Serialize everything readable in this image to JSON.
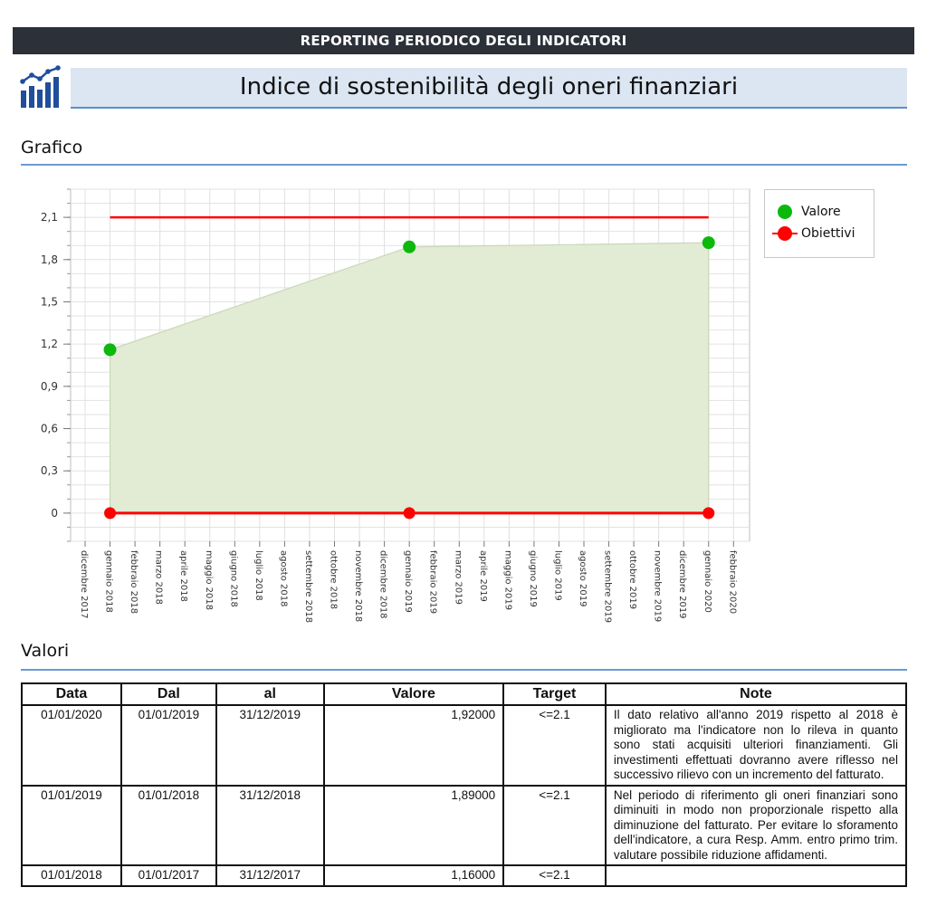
{
  "header": {
    "banner": "REPORTING PERIODICO DEGLI INDICATORI",
    "title": "Indice di sostenibilità degli oneri finanziari"
  },
  "sections": {
    "chart": "Grafico",
    "values": "Valori"
  },
  "colors": {
    "banner_bg": "#2b3039",
    "title_bg": "#dce6f2",
    "accent": "#5b8fc9",
    "valore": "#0cb80c",
    "obiettivi": "#ff0000",
    "area": "#e2ebd3"
  },
  "icon": "bar-chart-trend-icon",
  "chart_data": {
    "type": "area",
    "ylim": [
      -0.2,
      2.3
    ],
    "yticks": [
      "0",
      "0,3",
      "0,6",
      "0,9",
      "1,2",
      "1,5",
      "1,8",
      "2,1"
    ],
    "ytick_values": [
      0,
      0.3,
      0.6,
      0.9,
      1.2,
      1.5,
      1.8,
      2.1
    ],
    "x_categories": [
      "dicembre 2017",
      "gennaio 2018",
      "febbraio 2018",
      "marzo 2018",
      "aprile 2018",
      "maggio 2018",
      "giugno 2018",
      "luglio 2018",
      "agosto 2018",
      "settembre 2018",
      "ottobre 2018",
      "novembre 2018",
      "dicembre 2018",
      "gennaio 2019",
      "febbraio 2019",
      "marzo 2019",
      "aprile 2019",
      "maggio 2019",
      "giugno 2019",
      "luglio 2019",
      "agosto 2019",
      "settembre 2019",
      "ottobre 2019",
      "novembre 2019",
      "dicembre 2019",
      "gennaio 2020",
      "febbraio 2020"
    ],
    "series": [
      {
        "name": "Valore",
        "x": [
          "gennaio 2018",
          "gennaio 2019",
          "gennaio 2020"
        ],
        "values": [
          1.16,
          1.89,
          1.92
        ]
      },
      {
        "name": "Obiettivi",
        "x": [
          "gennaio 2018",
          "gennaio 2019",
          "gennaio 2020"
        ],
        "values": [
          0,
          0,
          0
        ],
        "upper": [
          2.1,
          2.1,
          2.1
        ]
      }
    ],
    "legend_position": "right",
    "grid": true
  },
  "table": {
    "headers": [
      "Data",
      "Dal",
      "al",
      "Valore",
      "Target",
      "Note"
    ],
    "rows": [
      [
        "01/01/2020",
        "01/01/2019",
        "31/12/2019",
        "1,92000",
        "<=2.1",
        "Il dato relativo all'anno 2019 rispetto al 2018 è migliorato ma l'indicatore non lo rileva in quanto sono stati acquisiti ulteriori finanziamenti. Gli investimenti effettuati dovranno avere riflesso nel successivo rilievo con un incremento del fatturato."
      ],
      [
        "01/01/2019",
        "01/01/2018",
        "31/12/2018",
        "1,89000",
        "<=2.1",
        "Nel periodo di riferimento gli oneri finanziari sono diminuiti in modo non proporzionale rispetto alla diminuzione del fatturato. Per evitare lo sforamento dell'indicatore, a cura Resp. Amm. entro primo trim. valutare possibile riduzione affidamenti."
      ],
      [
        "01/01/2018",
        "01/01/2017",
        "31/12/2017",
        "1,16000",
        "<=2.1",
        ""
      ]
    ]
  }
}
